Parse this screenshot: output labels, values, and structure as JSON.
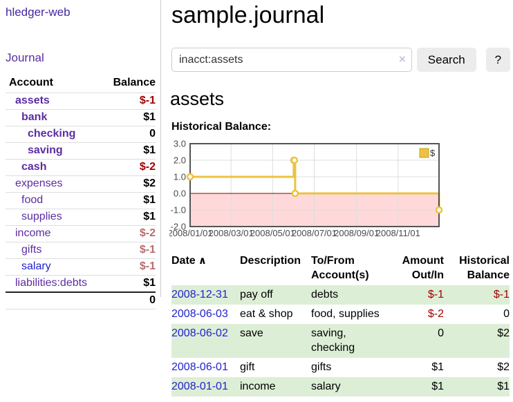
{
  "app": {
    "title": "hledger-web",
    "nav_journal": "Journal"
  },
  "sidebar": {
    "accounts_table": {
      "headers": {
        "account": "Account",
        "balance": "Balance"
      },
      "rows": [
        {
          "name": "assets",
          "depth": 1,
          "bold": true,
          "balance": "$-1",
          "negative": "strong",
          "unvisited": false
        },
        {
          "name": "bank",
          "depth": 2,
          "bold": true,
          "balance": "$1",
          "negative": "none",
          "unvisited": false
        },
        {
          "name": "checking",
          "depth": 3,
          "bold": true,
          "balance": "0",
          "negative": "none",
          "unvisited": false
        },
        {
          "name": "saving",
          "depth": 3,
          "bold": true,
          "balance": "$1",
          "negative": "none",
          "unvisited": false
        },
        {
          "name": "cash",
          "depth": 2,
          "bold": true,
          "balance": "$-2",
          "negative": "strong",
          "unvisited": false
        },
        {
          "name": "expenses",
          "depth": 1,
          "bold": false,
          "balance": "$2",
          "negative": "none",
          "unvisited": false
        },
        {
          "name": "food",
          "depth": 2,
          "bold": false,
          "balance": "$1",
          "negative": "none",
          "unvisited": false
        },
        {
          "name": "supplies",
          "depth": 2,
          "bold": false,
          "balance": "$1",
          "negative": "none",
          "unvisited": false
        },
        {
          "name": "income",
          "depth": 1,
          "bold": false,
          "balance": "$-2",
          "negative": "soft",
          "unvisited": false
        },
        {
          "name": "gifts",
          "depth": 2,
          "bold": false,
          "balance": "$-1",
          "negative": "soft",
          "unvisited": false
        },
        {
          "name": "salary",
          "depth": 2,
          "bold": false,
          "balance": "$-1",
          "negative": "soft",
          "unvisited": true
        },
        {
          "name": "liabilities:debts",
          "depth": 1,
          "bold": false,
          "balance": "$1",
          "negative": "none",
          "unvisited": false
        }
      ],
      "total": "0"
    }
  },
  "header": {
    "title": "sample.journal"
  },
  "search": {
    "query": "inacct:assets",
    "clear_icon": "×",
    "button_label": "Search",
    "help_label": "?"
  },
  "account_page": {
    "heading": "assets",
    "chart_label": "Historical Balance:"
  },
  "chart_data": {
    "type": "line",
    "step": true,
    "title": "Historical Balance",
    "series": [
      {
        "name": "$",
        "points": [
          [
            "2008-01-01",
            1
          ],
          [
            "2008-06-01",
            2
          ],
          [
            "2008-06-02",
            2
          ],
          [
            "2008-06-03",
            0
          ],
          [
            "2008-12-31",
            -1
          ]
        ]
      }
    ],
    "x_range": [
      "2008-01-01",
      "2008-12-31"
    ],
    "ylim": [
      -2,
      3
    ],
    "yticks": [
      3,
      2,
      1,
      0,
      -1,
      -2
    ],
    "ytick_labels": [
      "3.0",
      "2.0",
      "1.0",
      "0.0",
      "-1.0",
      "-2.0"
    ],
    "xticks": [
      "2008-01-01",
      "2008-03-01",
      "2008-05-01",
      "2008-07-01",
      "2008-09-01",
      "2008-11-01"
    ],
    "xtick_labels": [
      "2008/01/01",
      "2008/03/01",
      "2008/05/01",
      "2008/07/01",
      "2008/09/01",
      "2008/11/01"
    ],
    "legend_position": "top-right",
    "legend_label": "$",
    "grid": true,
    "colors": {
      "line": "#edc240",
      "marker_fill": "#ffffff",
      "negative_region": "#ffd9d9",
      "zero_line": "#8b0000",
      "grid": "#dcdcdc",
      "border": "#545454",
      "tick_text": "#4a4a4a"
    }
  },
  "transactions": {
    "columns": [
      {
        "l1": "Date",
        "l2": "",
        "sort_caret": "∧"
      },
      {
        "l1": "Description",
        "l2": ""
      },
      {
        "l1": "To/From",
        "l2": "Account(s)"
      },
      {
        "l1": "Amount",
        "l2": "Out/In"
      },
      {
        "l1": "Historical",
        "l2": "Balance"
      }
    ],
    "rows": [
      {
        "date": "2008-12-31",
        "description": "pay off",
        "accounts": "debts",
        "amount": "$-1",
        "amount_negative": true,
        "balance": "$-1",
        "balance_negative": true,
        "striped": true
      },
      {
        "date": "2008-06-03",
        "description": "eat & shop",
        "accounts": "food, supplies",
        "amount": "$-2",
        "amount_negative": true,
        "balance": "0",
        "balance_negative": false,
        "striped": false
      },
      {
        "date": "2008-06-02",
        "description": "save",
        "accounts": "saving, checking",
        "amount": "0",
        "amount_negative": false,
        "balance": "$2",
        "balance_negative": false,
        "striped": true
      },
      {
        "date": "2008-06-01",
        "description": "gift",
        "accounts": "gifts",
        "amount": "$1",
        "amount_negative": false,
        "balance": "$2",
        "balance_negative": false,
        "striped": false
      },
      {
        "date": "2008-01-01",
        "description": "income",
        "accounts": "salary",
        "amount": "$1",
        "amount_negative": false,
        "balance": "$1",
        "balance_negative": false,
        "striped": true
      }
    ]
  }
}
